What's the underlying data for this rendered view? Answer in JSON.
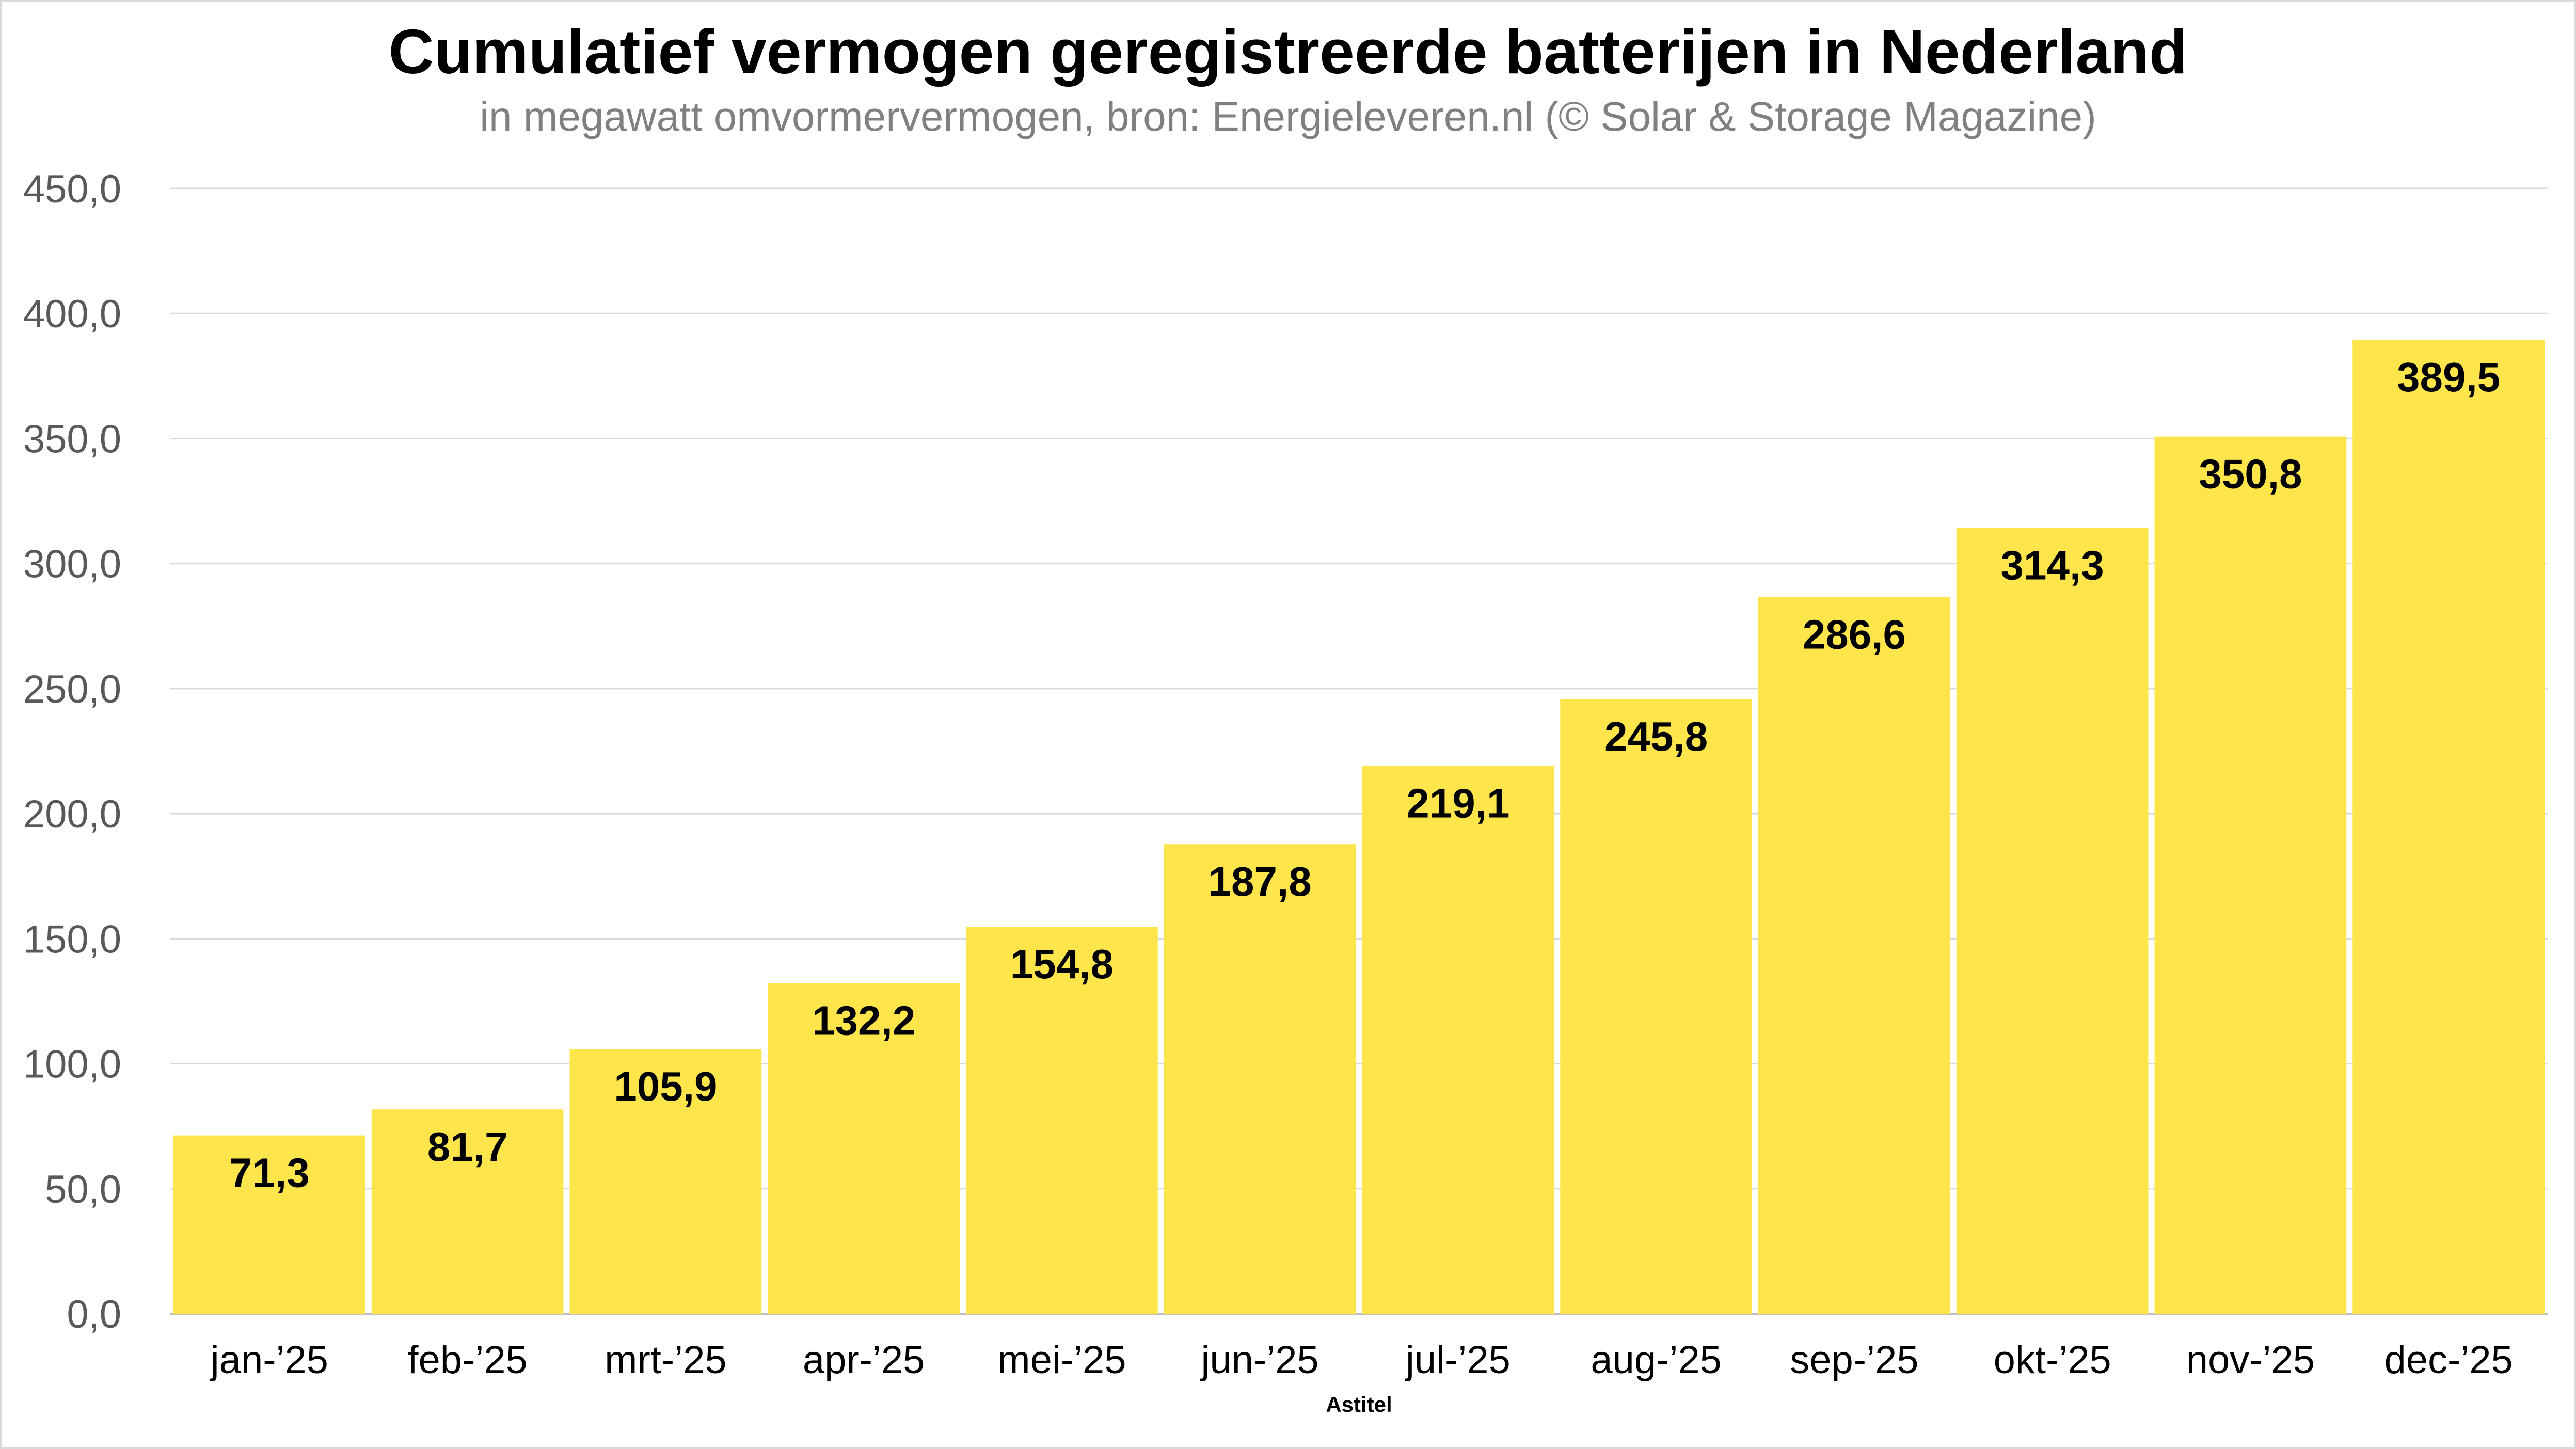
{
  "chart_data": {
    "type": "bar",
    "title": "Cumulatief vermogen geregistreerde batterijen in Nederland",
    "subtitle": "in megawatt omvormervermogen, bron: Energieleveren.nl (© Solar & Storage Magazine)",
    "categories": [
      "jan-’25",
      "feb-’25",
      "mrt-’25",
      "apr-’25",
      "mei-’25",
      "jun-’25",
      "jul-’25",
      "aug-’25",
      "sep-’25",
      "okt-’25",
      "nov-’25",
      "dec-’25"
    ],
    "values": [
      71.3,
      81.7,
      105.9,
      132.2,
      154.8,
      187.8,
      219.1,
      245.8,
      286.6,
      314.3,
      350.8,
      389.5
    ],
    "value_labels": [
      "71,3",
      "81,7",
      "105,9",
      "132,2",
      "154,8",
      "187,8",
      "219,1",
      "245,8",
      "286,6",
      "314,3",
      "350,8",
      "389,5"
    ],
    "yticks": [
      0,
      50,
      100,
      150,
      200,
      250,
      300,
      350,
      400,
      450
    ],
    "ytick_labels": [
      "0,0",
      "50,0",
      "100,0",
      "150,0",
      "200,0",
      "250,0",
      "300,0",
      "350,0",
      "400,0",
      "450,0"
    ],
    "ylim": [
      0,
      450
    ],
    "grid": true,
    "legend": "none",
    "bar_color": "#FFE54C",
    "annotation": "Astitel"
  }
}
